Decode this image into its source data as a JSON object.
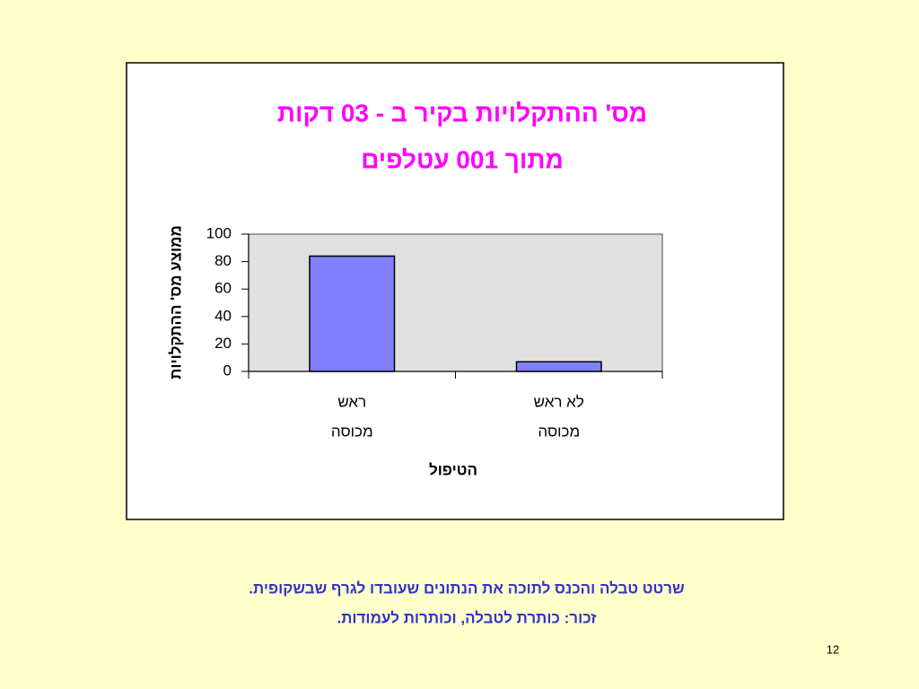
{
  "chart_data": {
    "type": "bar",
    "title": [
      "מס' ההתקלויות בקיר ב - 03 דקות",
      "מתוך 001 עטלפים"
    ],
    "y_label": "ממוצע מס' ההתקלויות",
    "x_label": "הטיפול",
    "categories": [
      [
        "ראש",
        "מכוסה"
      ],
      [
        "לא ראש",
        "מכוסה"
      ]
    ],
    "values": [
      84,
      7
    ],
    "color": "#8080ff",
    "ylim": [
      0,
      100
    ],
    "yticks": [
      0,
      20,
      40,
      60,
      80,
      100
    ],
    "grid": false
  },
  "notes": [
    "שרטט טבלה  והכנס לתוכה את הנתונים שעובדו לגרף שבשקופית.",
    "זכור: כותרת לטבלה, וכותרות לעמודות."
  ],
  "page_number": "12"
}
